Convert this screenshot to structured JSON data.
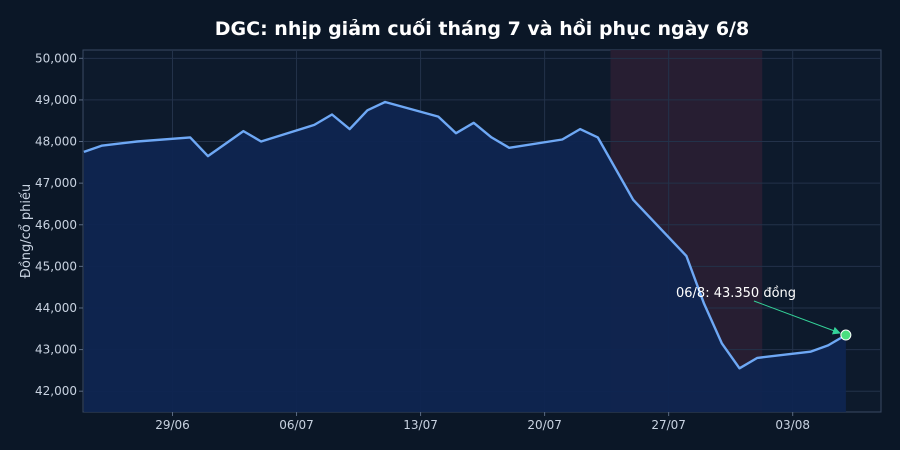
{
  "chart_data": {
    "type": "line",
    "title": "DGC: nhịp giảm cuối tháng 7 và hồi phục ngày 6/8",
    "xlabel": "",
    "ylabel": "Đồng/cổ phiếu",
    "ylim": [
      41500,
      50200
    ],
    "yticks": [
      42000,
      43000,
      44000,
      45000,
      46000,
      47000,
      48000,
      49000,
      50000
    ],
    "ytick_labels": [
      "42,000",
      "43,000",
      "44,000",
      "45,000",
      "46,000",
      "47,000",
      "48,000",
      "49,000",
      "50,000"
    ],
    "xticks": [
      "29/06",
      "06/07",
      "13/07",
      "20/07",
      "27/07",
      "03/08"
    ],
    "grid": true,
    "highlight_range": [
      "24/07",
      "01/08"
    ],
    "series": [
      {
        "x": [
          "24/06",
          "25/06",
          "26/06",
          "27/06",
          "30/06",
          "01/07",
          "02/07",
          "03/07",
          "04/07",
          "07/07",
          "08/07",
          "09/07",
          "10/07",
          "11/07",
          "14/07",
          "15/07",
          "16/07",
          "17/07",
          "18/07",
          "21/07",
          "22/07",
          "23/07",
          "24/07",
          "25/07",
          "28/07",
          "29/07",
          "30/07",
          "31/07",
          "01/08",
          "04/08",
          "05/08",
          "06/08"
        ],
        "values": [
          47750,
          47900,
          47950,
          48000,
          48100,
          47650,
          47950,
          48250,
          48000,
          48400,
          48650,
          48300,
          48750,
          48950,
          48600,
          48200,
          48450,
          48100,
          47850,
          48050,
          48300,
          48100,
          47350,
          46600,
          45250,
          44100,
          43150,
          42550,
          42800,
          42950,
          43100,
          43350
        ],
        "color": "#6ea8f5"
      }
    ],
    "annotations": [
      {
        "text": "06/8: 43.350 đồng",
        "x": "06/08",
        "y": 43350
      }
    ],
    "colors": {
      "background": "#0b1727",
      "plot_background": "#0d1a2c",
      "line": "#6ea8f5",
      "area": "#0f2550",
      "highlight": "#2a1f33",
      "marker": "#4ade80",
      "arrow": "#34d399",
      "grid": "#23324a",
      "axis_text": "#c8d2e0",
      "title": "#ffffff"
    }
  }
}
